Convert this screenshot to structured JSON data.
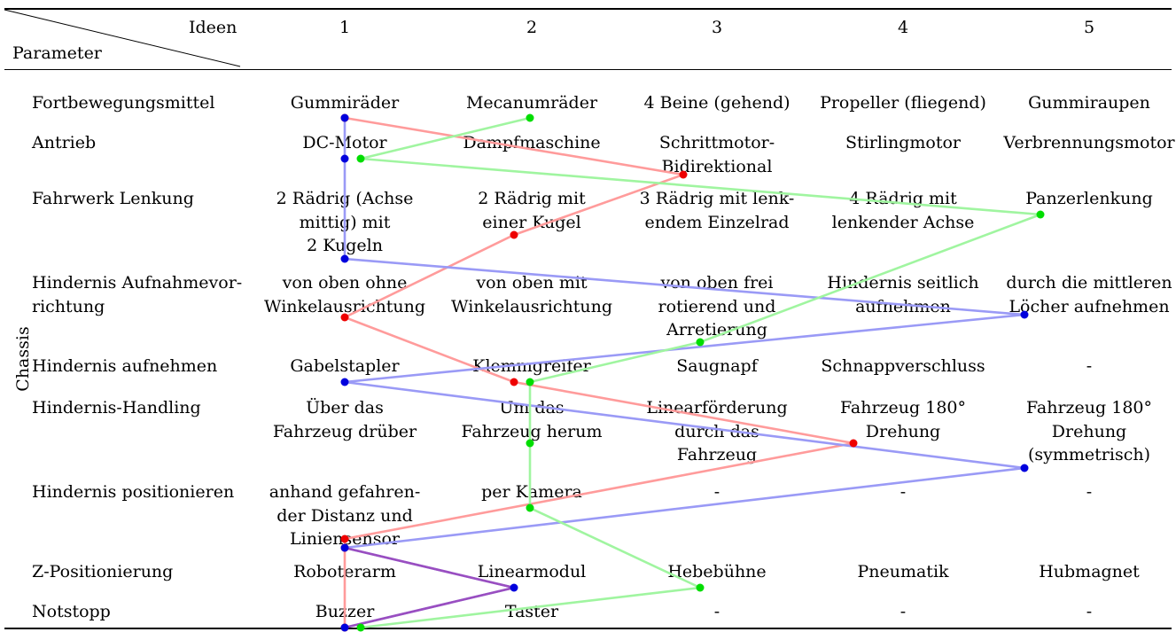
{
  "header": {
    "ideen_label": "Ideen",
    "parameter_label": "Parameter",
    "columns": [
      "1",
      "2",
      "3",
      "4",
      "5"
    ]
  },
  "group_label": "Chassis",
  "rows": [
    {
      "parameter": [
        "Fortbewegungsmittel"
      ],
      "cells": [
        [
          "Gummiräder"
        ],
        [
          "Mecanumräder"
        ],
        [
          "4 Beine (gehend)"
        ],
        [
          "Propeller (fliegend)"
        ],
        [
          "Gummiraupen"
        ]
      ]
    },
    {
      "parameter": [
        "Antrieb"
      ],
      "cells": [
        [
          "DC-Motor"
        ],
        [
          "Dampfmaschine"
        ],
        [
          "Schrittmotor-",
          "Bidirektional"
        ],
        [
          "Stirlingmotor"
        ],
        [
          "Verbrennungsmotor"
        ]
      ]
    },
    {
      "parameter": [
        "Fahrwerk Lenkung"
      ],
      "cells": [
        [
          "2 Rädrig (Achse",
          "mittig) mit",
          "2 Kugeln"
        ],
        [
          "2 Rädrig mit",
          "einer Kugel"
        ],
        [
          "3 Rädrig mit lenk-",
          "endem Einzelrad"
        ],
        [
          "4 Rädrig mit",
          "lenkender Achse"
        ],
        [
          "Panzerlenkung"
        ]
      ]
    },
    {
      "parameter": [
        "Hindernis Aufnahmevor-",
        "richtung"
      ],
      "cells": [
        [
          "von oben ohne",
          "Winkelausrichtung"
        ],
        [
          "von oben mit",
          "Winkelausrichtung"
        ],
        [
          "von oben frei",
          "rotierend und",
          "Arretierung"
        ],
        [
          "Hindernis seitlich",
          "aufnehmen"
        ],
        [
          "durch die mittleren",
          "Löcher aufnehmen"
        ]
      ]
    },
    {
      "parameter": [
        "Hindernis aufnehmen"
      ],
      "cells": [
        [
          "Gabelstapler"
        ],
        [
          "Klemmgreifer"
        ],
        [
          "Saugnapf"
        ],
        [
          "Schnappverschluss"
        ],
        [
          "-"
        ]
      ]
    },
    {
      "parameter": [
        "Hindernis-Handling"
      ],
      "cells": [
        [
          "Über das",
          "Fahrzeug drüber"
        ],
        [
          "Um das",
          "Fahrzeug herum"
        ],
        [
          "Linearförderung",
          "durch das",
          "Fahrzeug"
        ],
        [
          "Fahrzeug 180°",
          "Drehung"
        ],
        [
          "Fahrzeug 180°",
          "Drehung",
          "(symmetrisch)"
        ]
      ]
    },
    {
      "parameter": [
        "Hindernis positionieren"
      ],
      "cells": [
        [
          "anhand gefahren-",
          "der Distanz und",
          "Liniensensor"
        ],
        [
          "per Kamera"
        ],
        [
          "-"
        ],
        [
          "-"
        ],
        [
          "-"
        ]
      ]
    },
    {
      "parameter": [
        "Z-Positionierung"
      ],
      "cells": [
        [
          "Roboterarm"
        ],
        [
          "Linearmodul"
        ],
        [
          "Hebebühne"
        ],
        [
          "Pneumatik"
        ],
        [
          "Hubmagnet"
        ]
      ]
    },
    {
      "parameter": [
        "Notstopp"
      ],
      "cells": [
        [
          "Buzzer"
        ],
        [
          "Taster"
        ],
        [
          "-"
        ],
        [
          "-"
        ],
        [
          "-"
        ]
      ]
    }
  ],
  "concept_paths": [
    {
      "color": "#ff9b9b",
      "dot_color": "#ee0000",
      "choices": [
        1,
        3,
        2,
        1,
        2,
        4,
        1,
        1,
        1
      ]
    },
    {
      "color": "#9a9af6",
      "dot_color": "#0000dd",
      "choices": [
        1,
        1,
        1,
        5,
        1,
        5,
        1,
        2,
        1
      ]
    },
    {
      "color": "#a0f5a0",
      "dot_color": "#00dd00",
      "choices": [
        2,
        1,
        5,
        3,
        2,
        2,
        2,
        3,
        1
      ]
    }
  ],
  "shared_segment_color": "#9a4ec0"
}
